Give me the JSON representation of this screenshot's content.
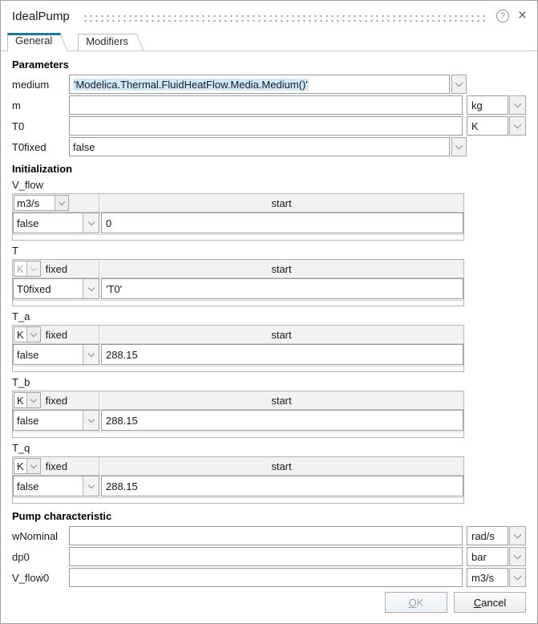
{
  "window": {
    "title": "IdealPump"
  },
  "titlebar": {
    "help_icon": "?",
    "close_icon": "×"
  },
  "tabs": [
    {
      "label": "General",
      "active": true
    },
    {
      "label": "Modifiers",
      "active": false
    }
  ],
  "parameters": {
    "heading": "Parameters",
    "medium": {
      "label": "medium",
      "value": "'Modelica.Thermal.FluidHeatFlow.Media.Medium()'"
    },
    "m": {
      "label": "m",
      "value": "",
      "unit": "kg"
    },
    "t0": {
      "label": "T0",
      "value": "",
      "unit": "K"
    },
    "t0fixed": {
      "label": "T0fixed",
      "value": "false"
    }
  },
  "initialization": {
    "heading": "Initialization",
    "tables": [
      {
        "name": "V_flow",
        "unit": "m3/s",
        "fixed_header": "",
        "start_header": "start",
        "fixed_value": "false",
        "start_value": "0"
      },
      {
        "name": "T",
        "unit": "K",
        "fixed_header": "fixed",
        "start_header": "start",
        "fixed_value": "T0fixed",
        "start_value": "'T0'"
      },
      {
        "name": "T_a",
        "unit": "K",
        "fixed_header": "fixed",
        "start_header": "start",
        "fixed_value": "false",
        "start_value": "288.15"
      },
      {
        "name": "T_b",
        "unit": "K",
        "fixed_header": "fixed",
        "start_header": "start",
        "fixed_value": "false",
        "start_value": "288.15"
      },
      {
        "name": "T_q",
        "unit": "K",
        "fixed_header": "fixed",
        "start_header": "start",
        "fixed_value": "false",
        "start_value": "288.15"
      }
    ]
  },
  "pump_characteristic": {
    "heading": "Pump characteristic",
    "wnominal": {
      "label": "wNominal",
      "value": "",
      "unit": "rad/s"
    },
    "dp0": {
      "label": "dp0",
      "value": "",
      "unit": "bar"
    },
    "v_flow0": {
      "label": "V_flow0",
      "value": "",
      "unit": "m3/s"
    }
  },
  "footer": {
    "ok": {
      "key": "O",
      "rest": "K"
    },
    "cancel": {
      "key": "C",
      "rest": "ancel"
    }
  },
  "colors": {
    "tab_accent": "#1b7a9e",
    "selection_highlight": "#cfe9f8",
    "disabled_text": "#a3a3a3"
  }
}
